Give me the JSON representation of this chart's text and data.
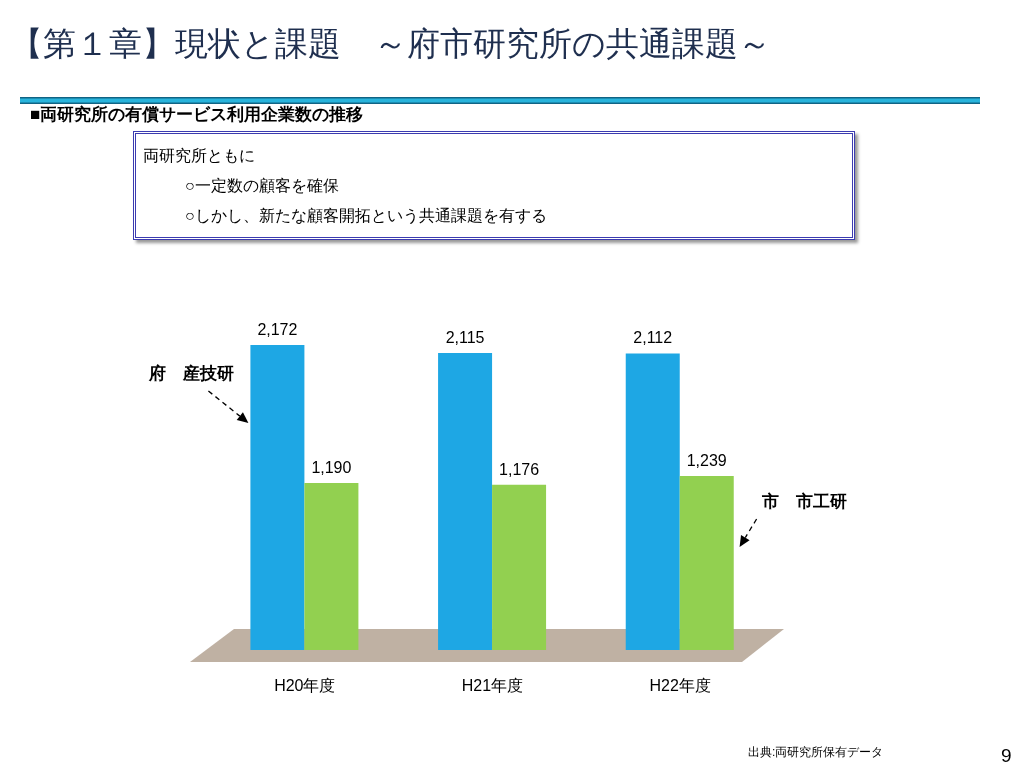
{
  "chart_data": {
    "type": "bar",
    "title": "【第１章】現状と課題　～府市研究所の共通課題～",
    "subtitle": "■両研究所の有償サービス利用企業数の推移",
    "categories": [
      "H20年度",
      "H21年度",
      "H22年度"
    ],
    "series": [
      {
        "name": "府　産技研",
        "color": "#1ea7e4",
        "values": [
          2172,
          2115,
          2112
        ],
        "value_labels": [
          "2,172",
          "2,115",
          "2,112"
        ]
      },
      {
        "name": "市　市工研",
        "color": "#92d050",
        "values": [
          1190,
          1176,
          1239
        ],
        "value_labels": [
          "1,190",
          "1,176",
          "1,239"
        ]
      }
    ],
    "tick_labels": "x",
    "annotations": [
      "両研究所ともに",
      "○一定数の顧客を確保",
      "○しかし、新たな顧客開拓という共通課題を有する",
      "出典:両研究所保有データ",
      "9"
    ]
  }
}
